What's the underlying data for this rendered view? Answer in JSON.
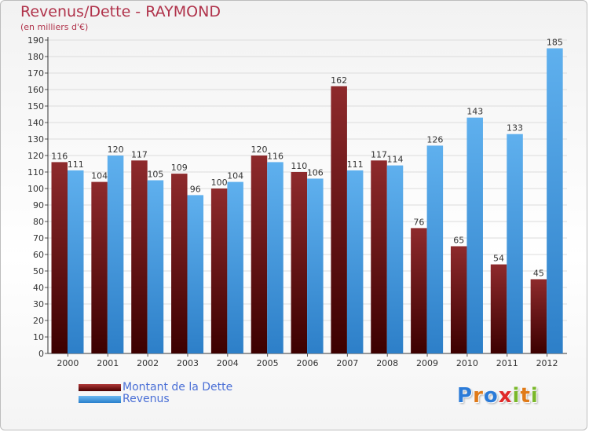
{
  "chart_data": {
    "type": "bar",
    "title": "Revenus/Dette - RAYMOND",
    "subtitle": "(en milliers d'€)",
    "categories": [
      "2000",
      "2001",
      "2002",
      "2003",
      "2004",
      "2005",
      "2006",
      "2007",
      "2008",
      "2009",
      "2010",
      "2011",
      "2012"
    ],
    "series": [
      {
        "name": "Montant de la Dette",
        "color": "#7a1010",
        "values": [
          116,
          104,
          117,
          109,
          100,
          120,
          110,
          162,
          117,
          76,
          65,
          54,
          45
        ]
      },
      {
        "name": "Revenus",
        "color": "#4aa0e6",
        "values": [
          111,
          120,
          105,
          96,
          104,
          116,
          106,
          111,
          114,
          126,
          143,
          133,
          185
        ]
      }
    ],
    "ylim": [
      0,
      190
    ],
    "ytick_step": 10,
    "grid": true,
    "legend": "bottom-left"
  },
  "logo": {
    "text": "Proxiti",
    "colors": [
      "#2b7bd8",
      "#e07a18",
      "#2b7bd8",
      "#e02a2a",
      "#7ab82a",
      "#e07a18",
      "#7ab82a"
    ]
  }
}
